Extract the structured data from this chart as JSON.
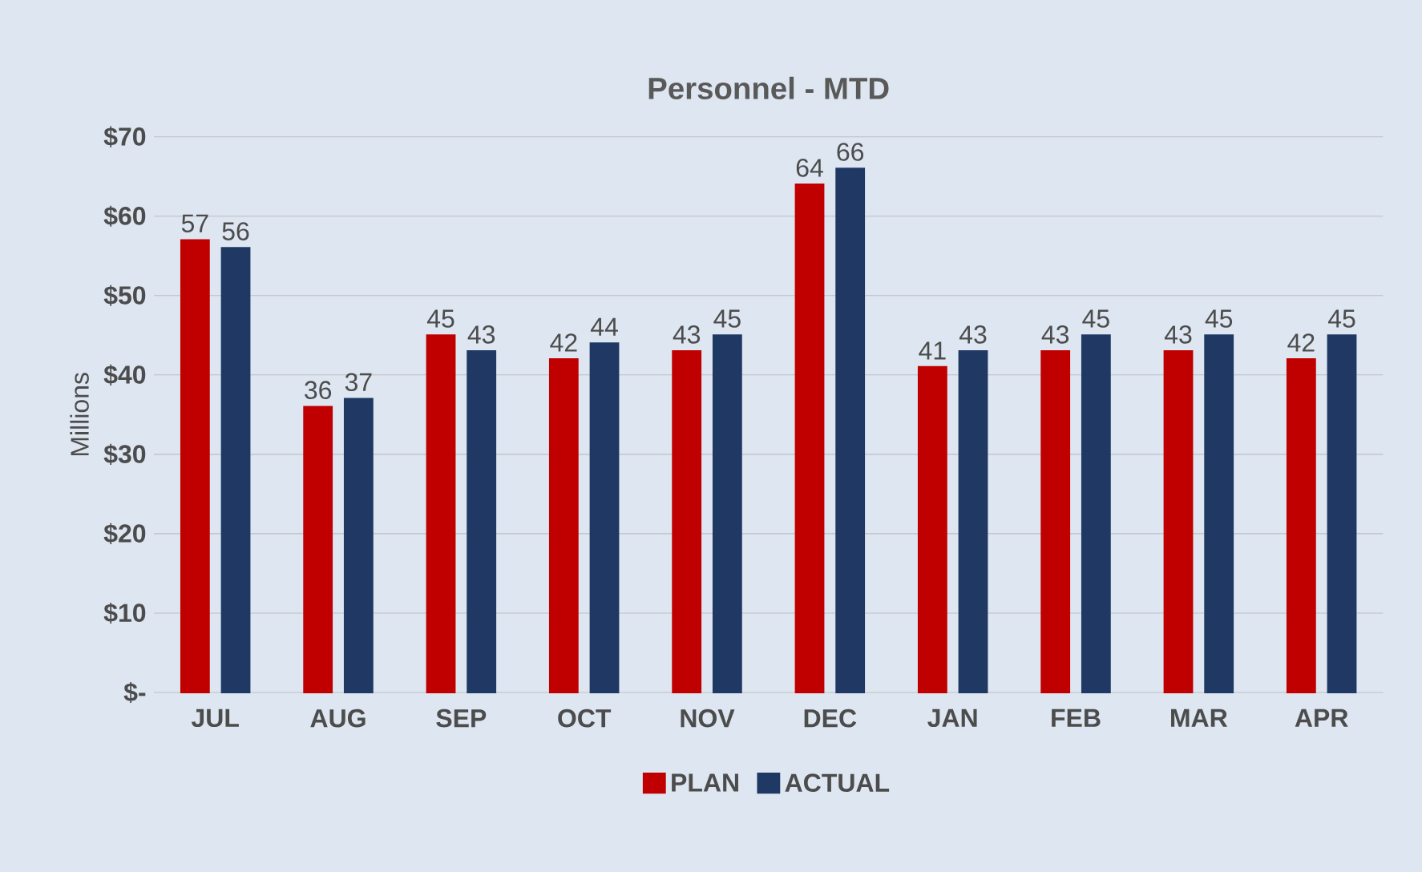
{
  "chart_data": {
    "type": "bar",
    "title": "Personnel - MTD",
    "ylabel": "Millions",
    "categories": [
      "JUL",
      "AUG",
      "SEP",
      "OCT",
      "NOV",
      "DEC",
      "JAN",
      "FEB",
      "MAR",
      "APR"
    ],
    "series": [
      {
        "name": "PLAN",
        "color": "#c00000",
        "values": [
          57,
          36,
          45,
          42,
          43,
          64,
          41,
          43,
          43,
          42
        ]
      },
      {
        "name": "ACTUAL",
        "color": "#1f3864",
        "values": [
          56,
          37,
          43,
          44,
          45,
          66,
          43,
          45,
          45,
          45
        ]
      }
    ],
    "ylim": [
      0,
      70
    ],
    "yticks": [
      {
        "value": 0,
        "label": "$-"
      },
      {
        "value": 10,
        "label": "$10"
      },
      {
        "value": 20,
        "label": "$20"
      },
      {
        "value": 30,
        "label": "$30"
      },
      {
        "value": 40,
        "label": "$40"
      },
      {
        "value": 50,
        "label": "$50"
      },
      {
        "value": 60,
        "label": "$60"
      },
      {
        "value": 70,
        "label": "$70"
      }
    ],
    "grid": "y",
    "legend": "bottom",
    "data_labels": true
  }
}
